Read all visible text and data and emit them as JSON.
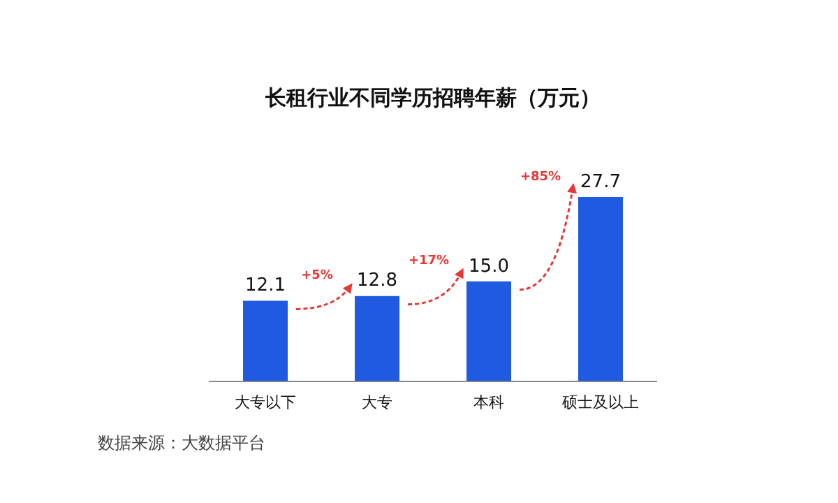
{
  "chart_data": {
    "type": "bar",
    "title": "长租行业不同学历招聘年薪（万元）",
    "categories": [
      "大专以下",
      "大专",
      "本科",
      "硕士及以上"
    ],
    "values": [
      12.1,
      12.8,
      15.0,
      27.7
    ],
    "value_labels": [
      "12.1",
      "12.8",
      "15.0",
      "27.7"
    ],
    "color": "#1f5ae0",
    "legend": false,
    "grid": false,
    "annotations": [
      "+5%",
      "+17%",
      "+85%",
      "数据来源：大数据平台"
    ]
  }
}
